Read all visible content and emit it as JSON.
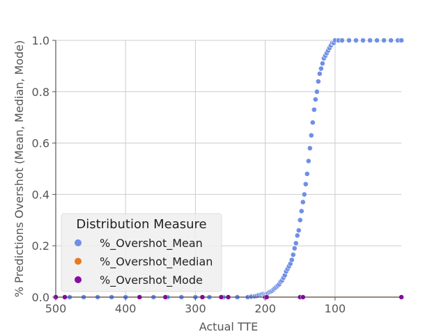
{
  "chart_data": {
    "type": "scatter",
    "title": "",
    "xlabel": "Actual TTE",
    "ylabel": "% Predictions Overshot (Mean, Median, Mode)",
    "xlim": [
      500,
      5
    ],
    "ylim": [
      0,
      1.0
    ],
    "x_inverted": true,
    "x_ticks": [
      500,
      400,
      300,
      200,
      100
    ],
    "y_ticks": [
      0.0,
      0.2,
      0.4,
      0.6,
      0.8,
      1.0
    ],
    "x_tick_labels": [
      "500",
      "400",
      "300",
      "200",
      "100"
    ],
    "y_tick_labels": [
      "0.0",
      "0.2",
      "0.4",
      "0.6",
      "0.8",
      "1.0"
    ],
    "grid": true,
    "legend": {
      "title": "Distribution Measure",
      "placement": "lower-left",
      "entries": [
        "%_Overshot_Mean",
        "%_Overshot_Median",
        "%_Overshot_Mode"
      ]
    },
    "series": [
      {
        "name": "%_Overshot_Mean",
        "color": "#6f8fe6",
        "points": [
          [
            500,
            0
          ],
          [
            480,
            0
          ],
          [
            460,
            0
          ],
          [
            440,
            0
          ],
          [
            420,
            0
          ],
          [
            400,
            0
          ],
          [
            380,
            0
          ],
          [
            360,
            0
          ],
          [
            340,
            0
          ],
          [
            320,
            0
          ],
          [
            300,
            0
          ],
          [
            280,
            0
          ],
          [
            260,
            0
          ],
          [
            240,
            0
          ],
          [
            225,
            0
          ],
          [
            220,
            0.002
          ],
          [
            215,
            0.003
          ],
          [
            212,
            0.005
          ],
          [
            209,
            0.008
          ],
          [
            206,
            0.01
          ],
          [
            204,
            0.012
          ],
          [
            202,
            0.012
          ],
          [
            200,
            0.01
          ],
          [
            198,
            0.013
          ],
          [
            196,
            0.015
          ],
          [
            194,
            0.02
          ],
          [
            192,
            0.022
          ],
          [
            190,
            0.025
          ],
          [
            188,
            0.03
          ],
          [
            186,
            0.035
          ],
          [
            184,
            0.04
          ],
          [
            182,
            0.045
          ],
          [
            180,
            0.05
          ],
          [
            178,
            0.06
          ],
          [
            176,
            0.065
          ],
          [
            174,
            0.075
          ],
          [
            172,
            0.085
          ],
          [
            170,
            0.1
          ],
          [
            168,
            0.11
          ],
          [
            166,
            0.12
          ],
          [
            164,
            0.13
          ],
          [
            162,
            0.145
          ],
          [
            160,
            0.165
          ],
          [
            158,
            0.19
          ],
          [
            156,
            0.21
          ],
          [
            154,
            0.24
          ],
          [
            152,
            0.26
          ],
          [
            150,
            0.3
          ],
          [
            148,
            0.335
          ],
          [
            146,
            0.37
          ],
          [
            144,
            0.4
          ],
          [
            142,
            0.44
          ],
          [
            140,
            0.48
          ],
          [
            138,
            0.53
          ],
          [
            136,
            0.58
          ],
          [
            134,
            0.63
          ],
          [
            132,
            0.68
          ],
          [
            130,
            0.73
          ],
          [
            128,
            0.77
          ],
          [
            126,
            0.8
          ],
          [
            124,
            0.84
          ],
          [
            122,
            0.87
          ],
          [
            120,
            0.89
          ],
          [
            118,
            0.91
          ],
          [
            116,
            0.93
          ],
          [
            114,
            0.94
          ],
          [
            112,
            0.95
          ],
          [
            110,
            0.96
          ],
          [
            108,
            0.97
          ],
          [
            106,
            0.98
          ],
          [
            104,
            0.99
          ],
          [
            102,
            0.99
          ],
          [
            100,
            1.0
          ],
          [
            95,
            1.0
          ],
          [
            90,
            1.0
          ],
          [
            80,
            1.0
          ],
          [
            70,
            1.0
          ],
          [
            60,
            1.0
          ],
          [
            50,
            1.0
          ],
          [
            40,
            1.0
          ],
          [
            30,
            1.0
          ],
          [
            20,
            1.0
          ],
          [
            10,
            1.0
          ],
          [
            5,
            1.0
          ]
        ]
      },
      {
        "name": "%_Overshot_Median",
        "color": "#e87a1e",
        "points": [
          [
            500,
            0
          ],
          [
            450,
            0
          ],
          [
            400,
            0
          ],
          [
            350,
            0
          ],
          [
            300,
            0
          ],
          [
            250,
            0
          ],
          [
            200,
            0
          ],
          [
            150,
            0
          ],
          [
            100,
            0
          ],
          [
            50,
            0
          ],
          [
            5,
            0
          ]
        ]
      },
      {
        "name": "%_Overshot_Mode",
        "color": "#8b0aa5",
        "points": [
          [
            500,
            0
          ],
          [
            487,
            0
          ],
          [
            380,
            0
          ],
          [
            343,
            0
          ],
          [
            290,
            0
          ],
          [
            263,
            0
          ],
          [
            253,
            0
          ],
          [
            200,
            0
          ],
          [
            198,
            0
          ],
          [
            150,
            0
          ],
          [
            146,
            0
          ],
          [
            5,
            0
          ]
        ]
      }
    ]
  }
}
